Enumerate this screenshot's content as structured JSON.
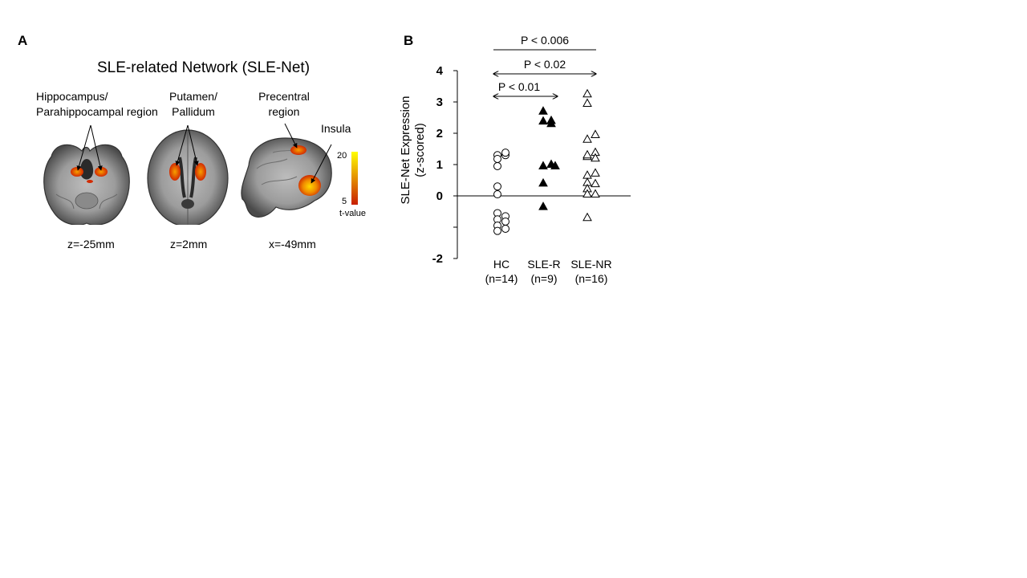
{
  "panel_a": {
    "letter": "A",
    "title": "SLE-related Network (SLE-Net)",
    "region_labels": {
      "hippocampus": [
        "Hippocampus/",
        "Parahippocampal region"
      ],
      "putamen": [
        "Putamen/",
        "Pallidum"
      ],
      "precentral": [
        "Precentral",
        "region"
      ],
      "insula": "Insula"
    },
    "slice_labels": [
      "z=-25mm",
      "z=2mm",
      "x=-49mm"
    ],
    "colorbar": {
      "max_label": "20",
      "min_label": "5",
      "unit_label": "t-value",
      "colors": [
        "#c81e00",
        "#ffff00"
      ]
    }
  },
  "panel_b": {
    "letter": "B",
    "comparisons": [
      "P < 0.006",
      "P < 0.02",
      "P < 0.01"
    ]
  },
  "chart_data": {
    "type": "scatter",
    "ylabel": [
      "SLE-Net Expression",
      "(z-scored)"
    ],
    "ylim": [
      -2,
      4
    ],
    "yticks": [
      {
        "value": 4,
        "label": "4"
      },
      {
        "value": 3,
        "label": "3"
      },
      {
        "value": 2,
        "label": "2"
      },
      {
        "value": 1,
        "label": "1"
      },
      {
        "value": 0,
        "label": "0"
      },
      {
        "value": -1,
        "label": ""
      },
      {
        "value": -2,
        "label": "-2"
      }
    ],
    "categories": [
      {
        "label": "HC",
        "sub": "(n=14)"
      },
      {
        "label": "SLE-R",
        "sub": "(n=9)"
      },
      {
        "label": "SLE-NR",
        "sub": "(n=16)"
      }
    ],
    "series": [
      {
        "category": 0,
        "marker": "circle-open",
        "points": [
          [
            -0.1,
            1.3
          ],
          [
            -0.1,
            1.18
          ],
          [
            -0.1,
            0.95
          ],
          [
            -0.1,
            0.3
          ],
          [
            -0.1,
            0.05
          ],
          [
            -0.1,
            -0.55
          ],
          [
            -0.1,
            -0.75
          ],
          [
            -0.1,
            -0.95
          ],
          [
            -0.1,
            -1.12
          ],
          [
            0.1,
            1.3
          ],
          [
            0.1,
            1.38
          ],
          [
            0.1,
            -0.65
          ],
          [
            0.1,
            -0.82
          ],
          [
            0.1,
            -1.05
          ]
        ]
      },
      {
        "category": 1,
        "marker": "triangle-filled",
        "points": [
          [
            -0.02,
            2.7
          ],
          [
            -0.02,
            2.38
          ],
          [
            -0.02,
            0.95
          ],
          [
            -0.02,
            0.4
          ],
          [
            -0.02,
            -0.35
          ],
          [
            0.18,
            2.4
          ],
          [
            0.18,
            2.3
          ],
          [
            0.18,
            1.0
          ],
          [
            0.28,
            0.95
          ]
        ]
      },
      {
        "category": 2,
        "marker": "triangle-open",
        "points": [
          [
            -0.1,
            3.25
          ],
          [
            -0.1,
            2.95
          ],
          [
            -0.1,
            1.8
          ],
          [
            -0.1,
            1.25
          ],
          [
            -0.1,
            0.65
          ],
          [
            -0.1,
            0.42
          ],
          [
            -0.1,
            0.22
          ],
          [
            -0.1,
            0.05
          ],
          [
            -0.1,
            -0.7
          ],
          [
            0.1,
            1.95
          ],
          [
            0.1,
            1.38
          ],
          [
            0.1,
            1.2
          ],
          [
            0.1,
            0.72
          ],
          [
            0.1,
            0.38
          ],
          [
            0.1,
            0.05
          ],
          [
            -0.1,
            1.3
          ]
        ]
      }
    ],
    "brackets": [
      {
        "label": "P < 0.006",
        "from": 0,
        "to": 2,
        "style": "line"
      },
      {
        "label": "P < 0.02",
        "from": 0,
        "to": 2,
        "style": "double-arrow"
      },
      {
        "label": "P < 0.01",
        "from": 0,
        "to": 1,
        "style": "double-arrow"
      }
    ]
  }
}
